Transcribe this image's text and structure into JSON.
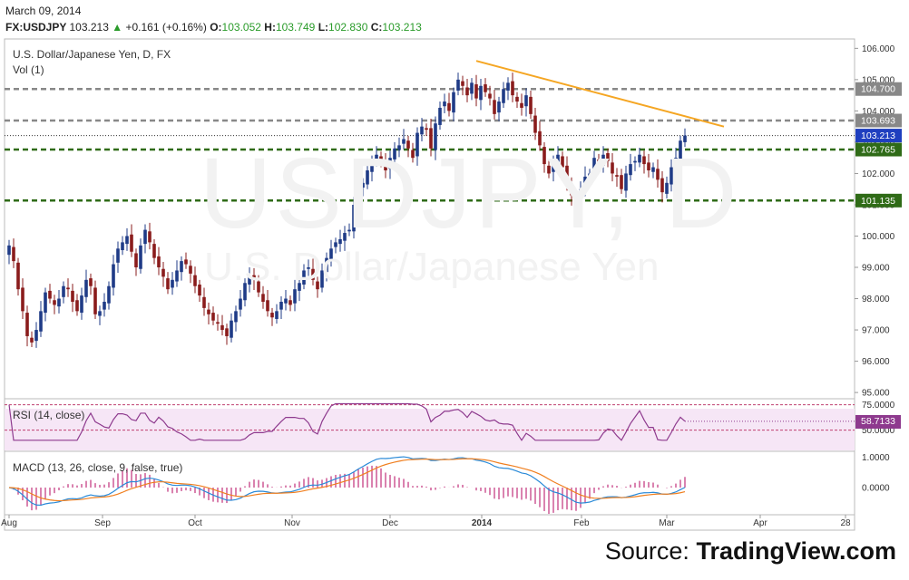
{
  "header": {
    "date": "March 09, 2014",
    "symbol": "FX:USDJPY",
    "last": "103.213",
    "change": "+0.161 (+0.16%)",
    "open_label": "O:",
    "open": "103.052",
    "high_label": "H:",
    "high": "103.749",
    "low_label": "L:",
    "low": "102.830",
    "close_label": "C:",
    "close": "103.213"
  },
  "main_pane": {
    "title": "U.S. Dollar/Japanese Yen, D, FX",
    "vol_label": "Vol (1)",
    "watermark_symbol": "USDJPY, D",
    "watermark_name": "U.S. Dollar/Japanese Yen"
  },
  "rsi_pane": {
    "label": "RSI (14, close)",
    "value_tag": "58.7133"
  },
  "macd_pane": {
    "label": "MACD (13, 26, close, 9, false, true)"
  },
  "source": {
    "prefix": "Source: ",
    "brand": "TradingView.com"
  },
  "colors": {
    "up": "#1f3b87",
    "down": "#8a1c1c",
    "resistance": "#888888",
    "support": "#2f6b17",
    "trendline": "#f5a623",
    "rsi": "#8e3a8e",
    "macd": "#2a8ad8",
    "signal": "#f07f1f",
    "hist": "#c0307a",
    "last_price_tag": "#1f3fbf",
    "rsi_tag": "#8e3a8e"
  },
  "chart_data": [
    {
      "type": "candlestick",
      "title": "U.S. Dollar/Japanese Yen, D, FX",
      "x_ticks": [
        "Aug",
        "Sep",
        "Oct",
        "Nov",
        "Dec",
        "2014",
        "Feb",
        "Mar",
        "Apr",
        "28"
      ],
      "y_ticks": [
        "95.000",
        "96.000",
        "97.000",
        "98.000",
        "99.000",
        "100.000",
        "101.000",
        "102.000",
        "103.000",
        "104.000",
        "105.000",
        "106.000"
      ],
      "ylim": [
        94.8,
        106.3
      ],
      "horizontal_lines": [
        {
          "value": 104.7,
          "label": "104.700",
          "style": "dashed",
          "role": "resistance"
        },
        {
          "value": 103.693,
          "label": "103.693",
          "style": "dashed",
          "role": "resistance"
        },
        {
          "value": 103.213,
          "label": "103.213",
          "style": "dotted",
          "role": "last"
        },
        {
          "value": 102.765,
          "label": "102.765",
          "style": "dashed",
          "role": "support"
        },
        {
          "value": 101.135,
          "label": "101.135",
          "style": "dashed",
          "role": "support"
        }
      ],
      "trendline": {
        "from": [
          105.6,
          "2013-12-30"
        ],
        "to": [
          103.5,
          "2014-03-25"
        ]
      },
      "closes": [
        99.7,
        99.2,
        98.3,
        97.6,
        96.8,
        96.6,
        97.0,
        97.6,
        98.2,
        98.0,
        97.8,
        98.0,
        98.4,
        98.3,
        97.9,
        97.6,
        98.1,
        98.6,
        98.4,
        97.5,
        97.6,
        97.9,
        98.4,
        99.1,
        99.6,
        99.8,
        100.0,
        99.5,
        99.0,
        99.7,
        100.2,
        99.8,
        99.3,
        99.0,
        98.7,
        98.3,
        98.6,
        98.9,
        99.2,
        99.1,
        98.8,
        98.4,
        98.1,
        97.7,
        97.5,
        97.3,
        97.2,
        97.0,
        96.8,
        97.3,
        97.6,
        98.0,
        98.5,
        98.7,
        98.6,
        98.2,
        97.9,
        97.6,
        97.4,
        97.6,
        97.9,
        98.0,
        97.8,
        98.3,
        98.5,
        98.9,
        99.0,
        98.6,
        98.3,
        98.9,
        99.3,
        99.6,
        99.8,
        99.9,
        100.1,
        100.2,
        101.0,
        101.5,
        101.7,
        102.1,
        102.4,
        102.6,
        102.4,
        102.1,
        102.5,
        102.8,
        102.9,
        103.1,
        102.8,
        102.5,
        103.3,
        103.5,
        103.4,
        102.8,
        103.6,
        104.1,
        104.3,
        104.0,
        104.6,
        105.0,
        104.8,
        104.5,
        104.9,
        104.4,
        104.8,
        104.6,
        104.4,
        103.9,
        104.3,
        104.7,
        104.9,
        104.5,
        104.3,
        104.1,
        104.5,
        103.9,
        103.3,
        102.9,
        102.3,
        102.0,
        102.4,
        102.6,
        102.2,
        101.7,
        101.3,
        101.0,
        101.5,
        101.9,
        102.0,
        102.5,
        102.3,
        102.6,
        102.4,
        102.0,
        101.9,
        101.5,
        102.0,
        102.3,
        102.4,
        102.6,
        102.3,
        102.1,
        102.2,
        101.8,
        101.4,
        101.7,
        102.2,
        102.5,
        103.05,
        103.213
      ],
      "rsi": {
        "ylim": [
          30,
          80
        ],
        "ticks": [
          "50.0000",
          "75.0000"
        ],
        "last": 58.7133
      },
      "macd": {
        "ticks": [
          "0.0000",
          "1.0000"
        ]
      }
    }
  ]
}
